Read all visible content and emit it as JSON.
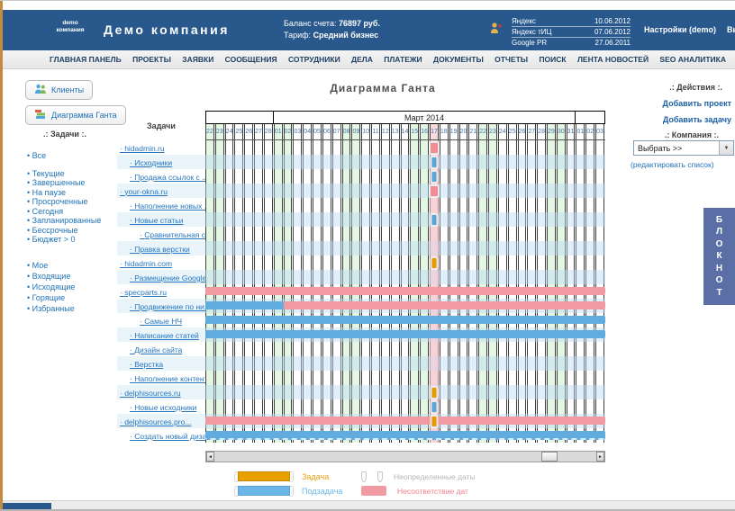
{
  "header": {
    "logo_line1": "demo",
    "logo_line2": "компания",
    "company_name": "Демо компания",
    "balance_label": "Баланс счета:",
    "balance_value": "76897 руб.",
    "tariff_label": "Тариф:",
    "tariff_value": "Средний бизнес",
    "seo_metrics": [
      {
        "name": "Яндекс",
        "date": "10.06.2012"
      },
      {
        "name": "Яндекс тИЦ",
        "date": "07.06.2012"
      },
      {
        "name": "Google PR",
        "date": "27.06.2011"
      }
    ],
    "settings_label": "Настройки (demo)",
    "logout_label": "Выход"
  },
  "nav": {
    "items": [
      "ГЛАВНАЯ ПАНЕЛЬ",
      "ПРОЕКТЫ",
      "ЗАЯВКИ",
      "СООБЩЕНИЯ",
      "СОТРУДНИКИ",
      "ДЕЛА",
      "ПЛАТЕЖИ",
      "ДОКУМЕНТЫ",
      "ОТЧЕТЫ",
      "ПОИСК",
      "ЛЕНТА НОВОСТЕЙ",
      "SEO АНАЛИТИКА"
    ]
  },
  "sidebar": {
    "clients_button": "Клиенты",
    "gantt_button": "Диаграмма Ганта",
    "tasks_heading": ".: Задачи :.",
    "filter_groups": [
      [
        "Все"
      ],
      [
        "Текущие",
        "Завершенные",
        "На паузе",
        "Просроченные",
        "Сегодня",
        "Запланированные",
        "Бессрочные",
        "Бюджет > 0"
      ],
      [
        "Мое",
        "Входящие",
        "Исходящие",
        "Горящие",
        "Избранные"
      ]
    ]
  },
  "main": {
    "title": "Диаграмма Ганта"
  },
  "right_panel": {
    "actions_heading": ".: Действия :.",
    "add_project": "Добавить проект",
    "add_task": "Добавить задачу",
    "company_heading": ".: Компания :.",
    "company_select_value": "Выбрать >>",
    "edit_list_link": "(редактировать список)",
    "notepad_tab": "БЛОКНОТ"
  },
  "gantt": {
    "tasks_col_header": "Задачи",
    "months": [
      {
        "label": "",
        "span": 7
      },
      {
        "label": "Март 2014",
        "span": 31
      },
      {
        "label": "",
        "span": 3
      }
    ],
    "days": [
      {
        "d": "22",
        "t": "we"
      },
      {
        "d": "23",
        "t": "we"
      },
      {
        "d": "24",
        "t": "wd"
      },
      {
        "d": "25",
        "t": "wd"
      },
      {
        "d": "26",
        "t": "wd"
      },
      {
        "d": "27",
        "t": "wd"
      },
      {
        "d": "28",
        "t": "wd"
      },
      {
        "d": "01",
        "t": "we"
      },
      {
        "d": "02",
        "t": "we"
      },
      {
        "d": "03",
        "t": "wd"
      },
      {
        "d": "04",
        "t": "wd"
      },
      {
        "d": "05",
        "t": "wd"
      },
      {
        "d": "06",
        "t": "wd"
      },
      {
        "d": "07",
        "t": "wd"
      },
      {
        "d": "08",
        "t": "we"
      },
      {
        "d": "09",
        "t": "we"
      },
      {
        "d": "10",
        "t": "wd"
      },
      {
        "d": "11",
        "t": "wd"
      },
      {
        "d": "12",
        "t": "wd"
      },
      {
        "d": "13",
        "t": "wd"
      },
      {
        "d": "14",
        "t": "wd"
      },
      {
        "d": "15",
        "t": "we"
      },
      {
        "d": "16",
        "t": "we"
      },
      {
        "d": "17",
        "t": "today"
      },
      {
        "d": "18",
        "t": "wd"
      },
      {
        "d": "19",
        "t": "wd"
      },
      {
        "d": "20",
        "t": "wd"
      },
      {
        "d": "21",
        "t": "wd"
      },
      {
        "d": "22",
        "t": "we"
      },
      {
        "d": "23",
        "t": "we"
      },
      {
        "d": "24",
        "t": "wd"
      },
      {
        "d": "25",
        "t": "wd"
      },
      {
        "d": "26",
        "t": "wd"
      },
      {
        "d": "27",
        "t": "wd"
      },
      {
        "d": "28",
        "t": "wd"
      },
      {
        "d": "29",
        "t": "we"
      },
      {
        "d": "30",
        "t": "we"
      },
      {
        "d": "31",
        "t": "wd"
      },
      {
        "d": "01",
        "t": "wd"
      },
      {
        "d": "02",
        "t": "wd"
      },
      {
        "d": "03",
        "t": "wd"
      }
    ],
    "today_col": 24,
    "rows": [
      {
        "name": "hidadmin.ru",
        "level": 0,
        "bars": [
          {
            "kind": "marker",
            "color": "pink",
            "col": 24
          }
        ]
      },
      {
        "name": "Исходники",
        "level": 1,
        "bars": [
          {
            "kind": "marker",
            "color": "blue",
            "col": 24
          }
        ]
      },
      {
        "name": "Продажа ссылок с ...",
        "level": 1,
        "bars": [
          {
            "kind": "marker",
            "color": "blue",
            "col": 24
          }
        ]
      },
      {
        "name": "your-okna.ru",
        "level": 0,
        "bars": [
          {
            "kind": "marker",
            "color": "pink",
            "col": 24
          }
        ]
      },
      {
        "name": "Наполнение новых ...",
        "level": 1,
        "bars": []
      },
      {
        "name": "Новые статьи",
        "level": 1,
        "bars": [
          {
            "kind": "marker",
            "color": "blue",
            "col": 24
          }
        ]
      },
      {
        "name": "Сравнительная статья",
        "level": 2,
        "bars": []
      },
      {
        "name": "Правка верстки",
        "level": 1,
        "bars": []
      },
      {
        "name": "hidadmin.com",
        "level": 0,
        "bars": [
          {
            "kind": "marker",
            "color": "orange",
            "col": 24
          }
        ]
      },
      {
        "name": "Размещение Google...",
        "level": 1,
        "bars": []
      },
      {
        "name": "specparts.ru",
        "level": 0,
        "bars": [
          {
            "kind": "range",
            "color": "pink",
            "from": 1,
            "to": 41
          }
        ]
      },
      {
        "name": "Продвижение по ни...",
        "level": 1,
        "bars": [
          {
            "kind": "range",
            "color": "blue",
            "from": 1,
            "to": 8
          },
          {
            "kind": "range",
            "color": "pink",
            "from": 9,
            "to": 41
          }
        ]
      },
      {
        "name": "Самые НЧ",
        "level": 2,
        "bars": [
          {
            "kind": "range",
            "color": "blue",
            "from": 1,
            "to": 41
          }
        ]
      },
      {
        "name": "Написание статей",
        "level": 1,
        "bars": [
          {
            "kind": "range",
            "color": "blue",
            "from": 1,
            "to": 41
          }
        ]
      },
      {
        "name": "Дизайн сайта",
        "level": 1,
        "bars": []
      },
      {
        "name": "Верстка",
        "level": 1,
        "bars": []
      },
      {
        "name": "Наполнение контентом",
        "level": 1,
        "bars": []
      },
      {
        "name": "delphisources.ru",
        "level": 0,
        "bars": [
          {
            "kind": "marker",
            "color": "orange",
            "col": 24
          }
        ]
      },
      {
        "name": "Новые исходники",
        "level": 1,
        "bars": [
          {
            "kind": "marker",
            "color": "blue",
            "col": 24
          }
        ]
      },
      {
        "name": "delphisources.pro...",
        "level": 0,
        "bars": [
          {
            "kind": "range",
            "color": "pink",
            "from": 1,
            "to": 41
          },
          {
            "kind": "marker",
            "color": "orange",
            "col": 24
          }
        ]
      },
      {
        "name": "Создать новый дизайн",
        "level": 1,
        "bars": [
          {
            "kind": "range",
            "color": "blue",
            "from": 1,
            "to": 41,
            "dashed": true
          }
        ]
      }
    ]
  },
  "legend": {
    "task_label": "Задача",
    "subtask_label": "Подзадача",
    "undefined_label": "Неопределенные даты",
    "mismatch_label": "Несоответствие дат"
  },
  "icons": {
    "scroll_left": "◄",
    "scroll_right": "►",
    "select_arrow": "▼"
  },
  "colors": {
    "header_bg": "#29598C",
    "link": "#2273B8",
    "task_orange": "#E8A000",
    "subtask_blue": "#6CB5E8",
    "mismatch_pink": "#F19AA2",
    "today_column": "#F9DADE",
    "weekend_column": "#E3F7E3",
    "alt_row": "#E9F4FB",
    "notepad_bg": "#5B6EA5"
  }
}
